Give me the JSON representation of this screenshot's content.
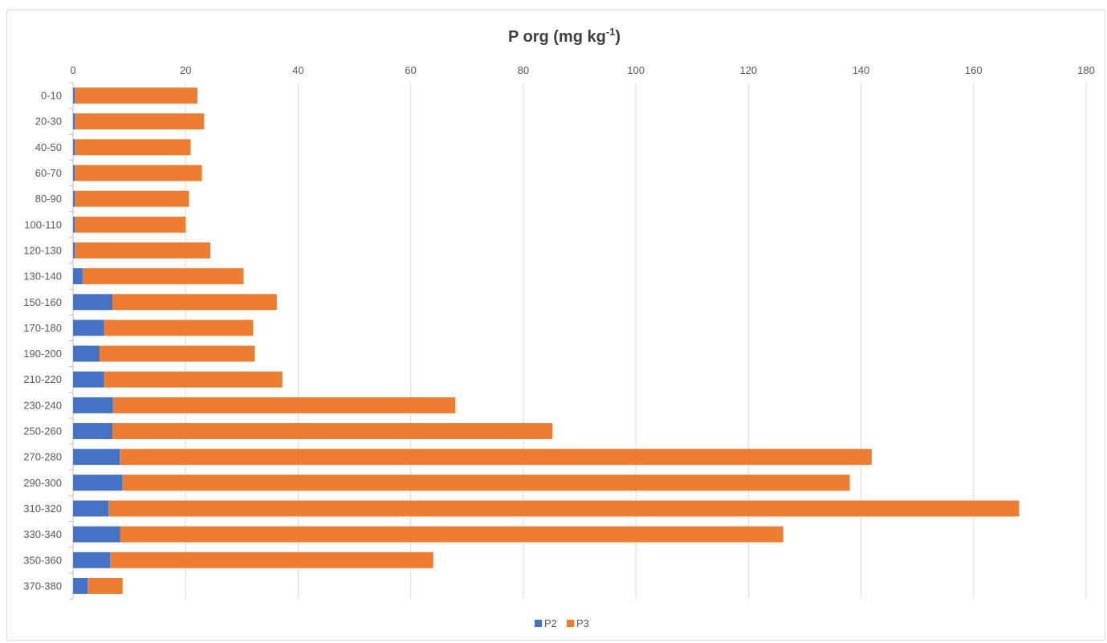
{
  "chart_data": {
    "type": "bar",
    "orientation": "horizontal",
    "stacked": true,
    "title": "P org (mg kg",
    "title_superscript": "-1",
    "title_suffix": ")",
    "xlabel": "",
    "ylabel": "",
    "xlim": [
      0,
      180
    ],
    "x_ticks": [
      "0",
      "20",
      "40",
      "60",
      "80",
      "100",
      "120",
      "140",
      "160",
      "180"
    ],
    "x_axis_position": "top",
    "grid": "vertical",
    "legend_position": "bottom",
    "categories": [
      "0-10",
      "20-30",
      "40-50",
      "60-70",
      "80-90",
      "100-110",
      "120-130",
      "130-140",
      "150-160",
      "170-180",
      "190-200",
      "210-220",
      "230-240",
      "250-260",
      "270-280",
      "290-300",
      "310-320",
      "330-340",
      "350-360",
      "370-380"
    ],
    "series": [
      {
        "name": "P2",
        "color": "#4472c4",
        "values": [
          0.3,
          0.3,
          0.3,
          0.3,
          0.3,
          0.3,
          0.3,
          1.7,
          7.0,
          5.5,
          4.7,
          5.5,
          7.1,
          7.0,
          8.3,
          8.8,
          6.3,
          8.4,
          6.6,
          2.6
        ]
      },
      {
        "name": "P3",
        "color": "#ed7d31",
        "values": [
          21.8,
          23.0,
          20.6,
          22.6,
          20.3,
          19.7,
          24.1,
          28.6,
          29.2,
          26.5,
          27.6,
          31.7,
          60.8,
          78.2,
          133.6,
          129.2,
          161.8,
          117.8,
          57.4,
          6.2
        ]
      }
    ]
  }
}
